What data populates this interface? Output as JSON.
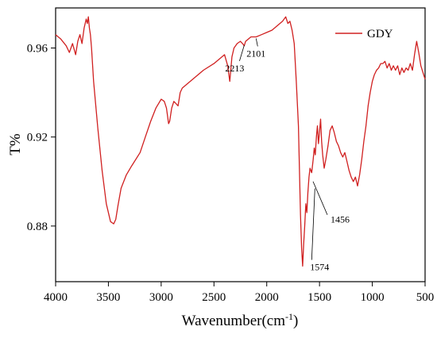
{
  "chart_data": {
    "type": "line",
    "title": "",
    "xlabel": "Wavenumber(cm",
    "xlabel_sup": "-1",
    "xlabel_end": ")",
    "ylabel": "T%",
    "xlim": [
      4000,
      500
    ],
    "ylim": [
      0.855,
      0.978
    ],
    "x_reversed": true,
    "grid": false,
    "legend_position": "top-right",
    "line_color": "#d02020",
    "x_ticks": [
      4000,
      3500,
      3000,
      2500,
      2000,
      1500,
      1000,
      500
    ],
    "x_tick_labels": [
      "4000",
      "3500",
      "3000",
      "2500",
      "2000",
      "1500",
      "1000",
      "500"
    ],
    "y_ticks": [
      0.88,
      0.92,
      0.96
    ],
    "y_tick_labels": [
      "0.88",
      "0.92",
      "0.96"
    ],
    "series": [
      {
        "name": "GDY",
        "x": [
          4000,
          3950,
          3900,
          3870,
          3840,
          3810,
          3790,
          3770,
          3750,
          3730,
          3710,
          3700,
          3690,
          3680,
          3670,
          3660,
          3640,
          3600,
          3560,
          3520,
          3480,
          3450,
          3430,
          3410,
          3380,
          3330,
          3280,
          3200,
          3150,
          3100,
          3050,
          3000,
          2970,
          2950,
          2930,
          2920,
          2900,
          2880,
          2860,
          2840,
          2820,
          2800,
          2700,
          2600,
          2500,
          2400,
          2370,
          2350,
          2330,
          2310,
          2280,
          2250,
          2230,
          2213,
          2200,
          2150,
          2101,
          2050,
          2000,
          1950,
          1900,
          1850,
          1820,
          1800,
          1780,
          1760,
          1740,
          1720,
          1700,
          1690,
          1680,
          1670,
          1660,
          1650,
          1640,
          1630,
          1620,
          1610,
          1600,
          1590,
          1574,
          1560,
          1550,
          1540,
          1530,
          1520,
          1510,
          1500,
          1490,
          1480,
          1470,
          1456,
          1440,
          1420,
          1400,
          1380,
          1360,
          1340,
          1320,
          1300,
          1280,
          1260,
          1240,
          1220,
          1200,
          1180,
          1160,
          1140,
          1120,
          1100,
          1080,
          1060,
          1040,
          1020,
          1000,
          980,
          960,
          940,
          920,
          900,
          880,
          860,
          840,
          820,
          800,
          780,
          760,
          740,
          720,
          700,
          680,
          660,
          640,
          620,
          600,
          580,
          560,
          540,
          520,
          500
        ],
        "y": [
          0.966,
          0.964,
          0.961,
          0.958,
          0.962,
          0.957,
          0.963,
          0.966,
          0.962,
          0.969,
          0.973,
          0.971,
          0.974,
          0.969,
          0.966,
          0.96,
          0.945,
          0.924,
          0.905,
          0.89,
          0.882,
          0.881,
          0.883,
          0.889,
          0.897,
          0.903,
          0.907,
          0.913,
          0.92,
          0.927,
          0.933,
          0.937,
          0.936,
          0.933,
          0.926,
          0.927,
          0.933,
          0.936,
          0.935,
          0.934,
          0.94,
          0.942,
          0.946,
          0.95,
          0.953,
          0.957,
          0.952,
          0.945,
          0.956,
          0.96,
          0.962,
          0.963,
          0.962,
          0.961,
          0.963,
          0.965,
          0.965,
          0.966,
          0.967,
          0.968,
          0.97,
          0.972,
          0.974,
          0.971,
          0.972,
          0.968,
          0.962,
          0.945,
          0.925,
          0.905,
          0.885,
          0.87,
          0.862,
          0.872,
          0.88,
          0.89,
          0.886,
          0.895,
          0.902,
          0.906,
          0.904,
          0.91,
          0.915,
          0.912,
          0.92,
          0.925,
          0.917,
          0.922,
          0.928,
          0.918,
          0.912,
          0.906,
          0.91,
          0.916,
          0.923,
          0.925,
          0.922,
          0.918,
          0.916,
          0.913,
          0.911,
          0.913,
          0.909,
          0.905,
          0.902,
          0.9,
          0.902,
          0.898,
          0.903,
          0.91,
          0.918,
          0.925,
          0.934,
          0.94,
          0.945,
          0.948,
          0.95,
          0.951,
          0.953,
          0.953,
          0.954,
          0.951,
          0.953,
          0.95,
          0.952,
          0.95,
          0.952,
          0.948,
          0.951,
          0.949,
          0.951,
          0.95,
          0.953,
          0.95,
          0.957,
          0.963,
          0.958,
          0.952,
          0.949,
          0.946
        ]
      }
    ],
    "annotations": [
      {
        "text": "2213",
        "x": 2213,
        "y": 0.962
      },
      {
        "text": "2101",
        "x": 2101,
        "y": 0.965
      },
      {
        "text": "1456",
        "x": 1456,
        "y": 0.91
      },
      {
        "text": "1574",
        "x": 1574,
        "y": 0.904
      }
    ]
  }
}
